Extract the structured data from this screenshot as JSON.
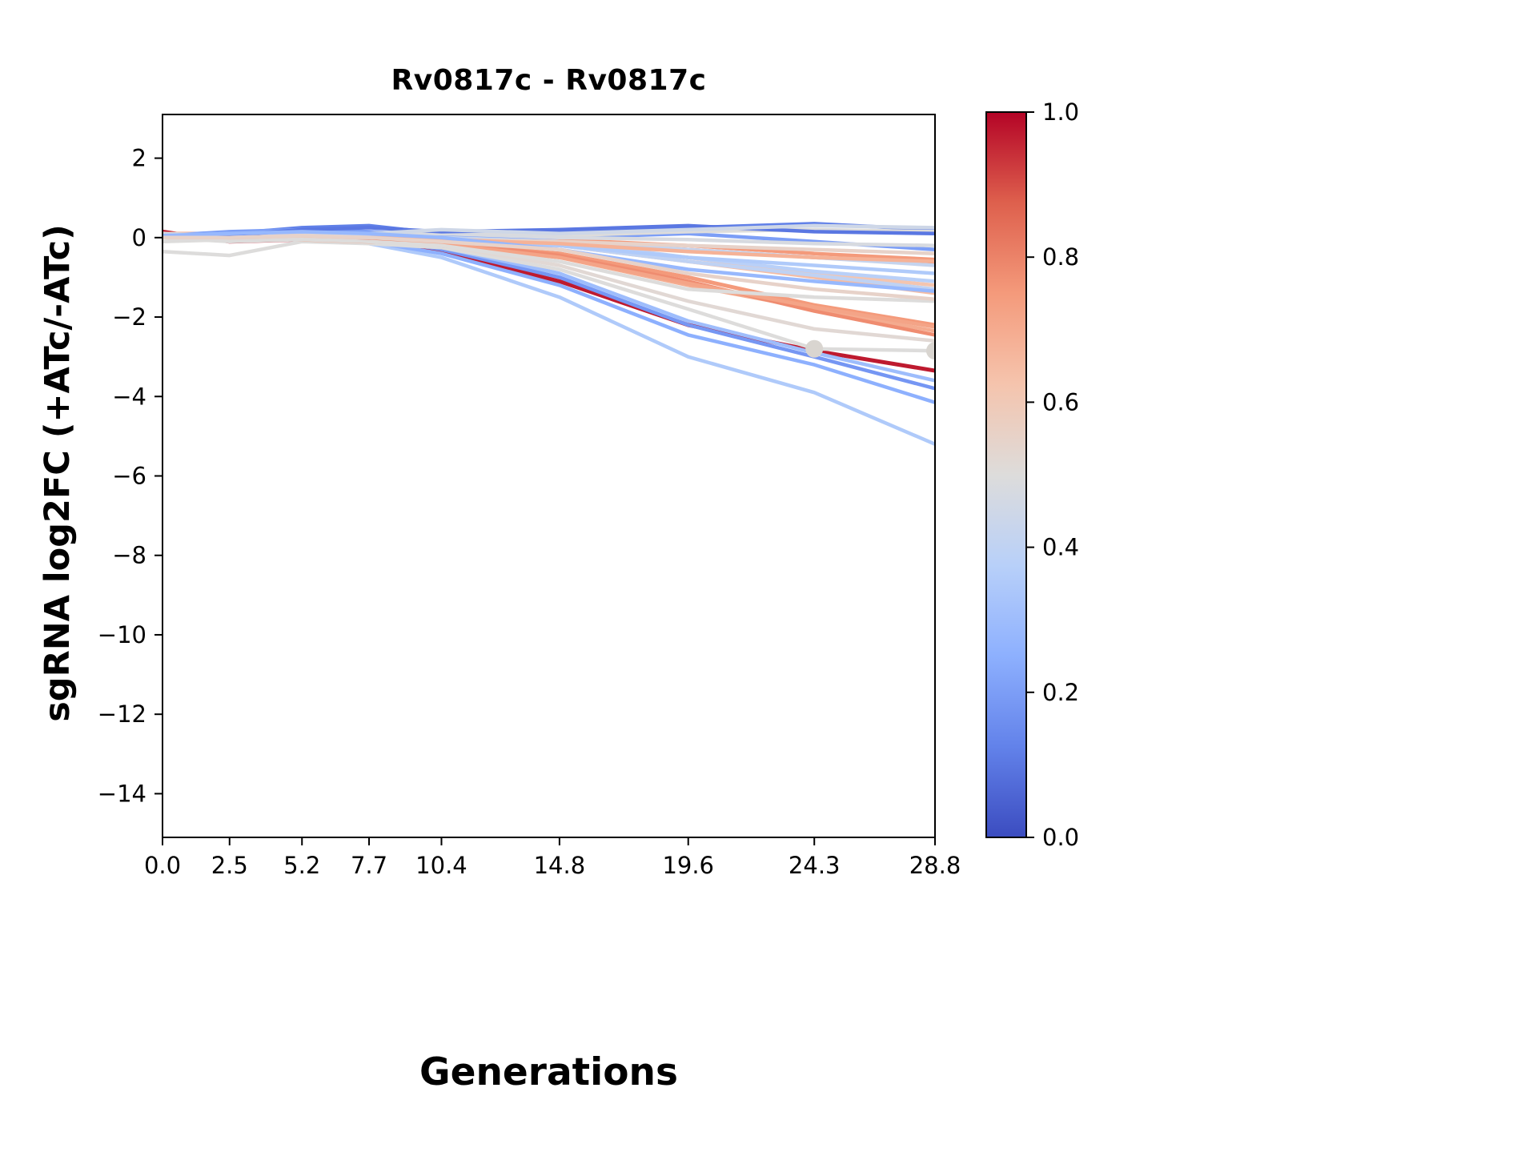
{
  "title": "Rv0817c - Rv0817c",
  "xlabel": "Generations",
  "ylabel": "sgRNA log2FC (+ATc/-ATc)",
  "chart_data": {
    "type": "line",
    "title": "Rv0817c - Rv0817c",
    "xlabel": "Generations",
    "ylabel": "sgRNA log2FC (+ATc/-ATc)",
    "colormap": "coolwarm",
    "xlim": [
      0.0,
      28.8
    ],
    "ylim": [
      -15.1,
      3.1
    ],
    "grid": false,
    "x": [
      0.0,
      2.5,
      5.2,
      7.7,
      10.4,
      14.8,
      19.6,
      24.3,
      28.8
    ],
    "xtick_values": [
      0.0,
      2.5,
      5.2,
      7.7,
      10.4,
      14.8,
      19.6,
      24.3,
      28.8
    ],
    "xtick_labels": [
      "0.0",
      "2.5",
      "5.2",
      "7.7",
      "10.4",
      "14.8",
      "19.6",
      "24.3",
      "28.8"
    ],
    "ytick_values": [
      2,
      0,
      -2,
      -4,
      -6,
      -8,
      -10,
      -12,
      -14
    ],
    "ytick_labels": [
      "2",
      "0",
      "−2",
      "−4",
      "−6",
      "−8",
      "−10",
      "−12",
      "−14"
    ],
    "colorbar": {
      "min": 0.0,
      "max": 1.0,
      "tick_values": [
        0.0,
        0.2,
        0.4,
        0.6,
        0.8,
        1.0
      ],
      "tick_labels": [
        "0.0",
        "0.2",
        "0.4",
        "0.6",
        "0.8",
        "1.0"
      ]
    },
    "series": [
      {
        "color_value": 0.97,
        "width": 5,
        "values": [
          0.15,
          -0.1,
          -0.05,
          -0.1,
          -0.35,
          -1.1,
          -2.2,
          -2.85,
          -3.35
        ]
      },
      {
        "color_value": 0.35,
        "width": 4.5,
        "values": [
          0.0,
          0.05,
          0.1,
          -0.15,
          -0.5,
          -1.5,
          -3.0,
          -3.9,
          -5.2
        ]
      },
      {
        "color_value": 0.25,
        "width": 4.5,
        "values": [
          0.05,
          0.0,
          0.1,
          -0.1,
          -0.4,
          -1.2,
          -2.45,
          -3.2,
          -4.15
        ]
      },
      {
        "color_value": 0.18,
        "width": 4.5,
        "values": [
          0.0,
          0.05,
          0.15,
          0.0,
          -0.3,
          -1.0,
          -2.2,
          -3.0,
          -3.8
        ]
      },
      {
        "color_value": 0.3,
        "width": 4.5,
        "values": [
          0.0,
          0.1,
          0.2,
          0.05,
          -0.25,
          -0.9,
          -2.1,
          -2.9,
          -3.6
        ]
      },
      {
        "color_value": 0.5,
        "width": 4.5,
        "values": [
          -0.35,
          -0.45,
          -0.1,
          -0.15,
          -0.25,
          -0.8,
          -1.8,
          -2.8,
          -2.85
        ]
      },
      {
        "color_value": 0.52,
        "width": 4.5,
        "values": [
          0.1,
          0.05,
          0.0,
          -0.05,
          -0.2,
          -0.7,
          -1.6,
          -2.3,
          -2.6
        ]
      },
      {
        "color_value": 0.75,
        "width": 5,
        "values": [
          0.1,
          0.0,
          -0.05,
          -0.1,
          -0.15,
          -0.4,
          -1.0,
          -1.7,
          -2.2
        ]
      },
      {
        "color_value": 0.7,
        "width": 4.5,
        "values": [
          0.05,
          -0.05,
          0.0,
          -0.05,
          -0.2,
          -0.5,
          -1.2,
          -1.8,
          -2.35
        ]
      },
      {
        "color_value": 0.78,
        "width": 4.5,
        "values": [
          0.0,
          0.05,
          0.05,
          0.0,
          -0.1,
          -0.45,
          -1.1,
          -1.85,
          -2.45
        ]
      },
      {
        "color_value": 0.72,
        "width": 4.5,
        "values": [
          0.1,
          0.1,
          0.0,
          -0.05,
          -0.15,
          -0.5,
          -1.15,
          -1.75,
          -2.25
        ]
      },
      {
        "color_value": 0.65,
        "width": 4.5,
        "values": [
          0.05,
          0.0,
          0.05,
          0.0,
          -0.05,
          -0.2,
          -0.6,
          -1.0,
          -1.4
        ]
      },
      {
        "color_value": 0.62,
        "width": 4.5,
        "values": [
          0.0,
          0.05,
          0.1,
          0.05,
          0.0,
          -0.15,
          -0.5,
          -0.9,
          -1.2
        ]
      },
      {
        "color_value": 0.8,
        "width": 4.5,
        "values": [
          0.05,
          0.0,
          0.0,
          -0.05,
          -0.05,
          -0.1,
          -0.3,
          -0.5,
          -0.65
        ]
      },
      {
        "color_value": 0.75,
        "width": 4.5,
        "values": [
          0.1,
          0.05,
          0.05,
          0.0,
          0.05,
          -0.05,
          -0.2,
          -0.4,
          -0.55
        ]
      },
      {
        "color_value": 0.4,
        "width": 4.5,
        "values": [
          0.0,
          0.1,
          0.15,
          0.1,
          0.0,
          -0.2,
          -0.6,
          -0.95,
          -1.3
        ]
      },
      {
        "color_value": 0.38,
        "width": 4.5,
        "values": [
          0.05,
          0.1,
          0.2,
          0.1,
          0.05,
          -0.1,
          -0.5,
          -0.85,
          -1.1
        ]
      },
      {
        "color_value": 0.12,
        "width": 4.5,
        "values": [
          0.0,
          0.1,
          0.25,
          0.3,
          0.1,
          0.15,
          0.25,
          0.35,
          0.2
        ]
      },
      {
        "color_value": 0.2,
        "width": 4.5,
        "values": [
          0.05,
          0.15,
          0.2,
          0.15,
          0.05,
          0.0,
          0.1,
          -0.1,
          -0.3
        ]
      },
      {
        "color_value": 0.42,
        "width": 4.5,
        "values": [
          0.0,
          0.05,
          0.1,
          0.05,
          0.0,
          -0.1,
          -0.3,
          -0.5,
          -0.7
        ]
      },
      {
        "color_value": 0.5,
        "width": 4.5,
        "values": [
          -0.1,
          -0.05,
          0.0,
          0.05,
          0.1,
          0.05,
          0.15,
          0.2,
          0.15
        ]
      },
      {
        "color_value": 0.55,
        "width": 4.5,
        "values": [
          0.0,
          -0.05,
          0.0,
          0.0,
          -0.05,
          -0.1,
          -0.2,
          -0.3,
          -0.4
        ]
      },
      {
        "color_value": 0.48,
        "width": 4.5,
        "values": [
          0.1,
          0.05,
          0.1,
          0.05,
          0.1,
          0.0,
          -0.05,
          -0.15,
          -0.2
        ]
      },
      {
        "color_value": 0.35,
        "width": 4.5,
        "values": [
          0.05,
          0.1,
          0.1,
          0.05,
          -0.05,
          -0.2,
          -0.5,
          -0.7,
          -0.9
        ]
      },
      {
        "color_value": 0.68,
        "width": 4.5,
        "values": [
          0.0,
          0.0,
          0.05,
          0.0,
          -0.05,
          -0.15,
          -0.35,
          -0.5,
          -0.6
        ]
      },
      {
        "color_value": 0.1,
        "width": 4.5,
        "values": [
          0.0,
          0.05,
          0.2,
          0.25,
          0.15,
          0.2,
          0.3,
          0.15,
          0.1
        ]
      },
      {
        "color_value": 0.45,
        "width": 4.5,
        "values": [
          0.0,
          0.0,
          0.05,
          0.1,
          0.2,
          0.1,
          0.2,
          0.3,
          0.25
        ]
      },
      {
        "color_value": 0.5,
        "width": 4.5,
        "values": [
          0.0,
          -0.1,
          -0.05,
          -0.1,
          -0.2,
          -0.6,
          -1.3,
          -1.5,
          -1.6
        ]
      },
      {
        "color_value": 0.28,
        "width": 4.5,
        "values": [
          0.05,
          0.1,
          0.15,
          0.1,
          0.0,
          -0.3,
          -0.8,
          -1.1,
          -1.35
        ]
      },
      {
        "color_value": 0.55,
        "width": 4.5,
        "values": [
          0.0,
          0.0,
          0.05,
          0.0,
          -0.1,
          -0.3,
          -0.9,
          -1.3,
          -1.55
        ]
      }
    ],
    "markers": [
      {
        "x": 24.3,
        "y": -2.8
      },
      {
        "x": 28.8,
        "y": -2.85
      }
    ],
    "marker_color": "#d9d5d0",
    "marker_radius": 11
  }
}
